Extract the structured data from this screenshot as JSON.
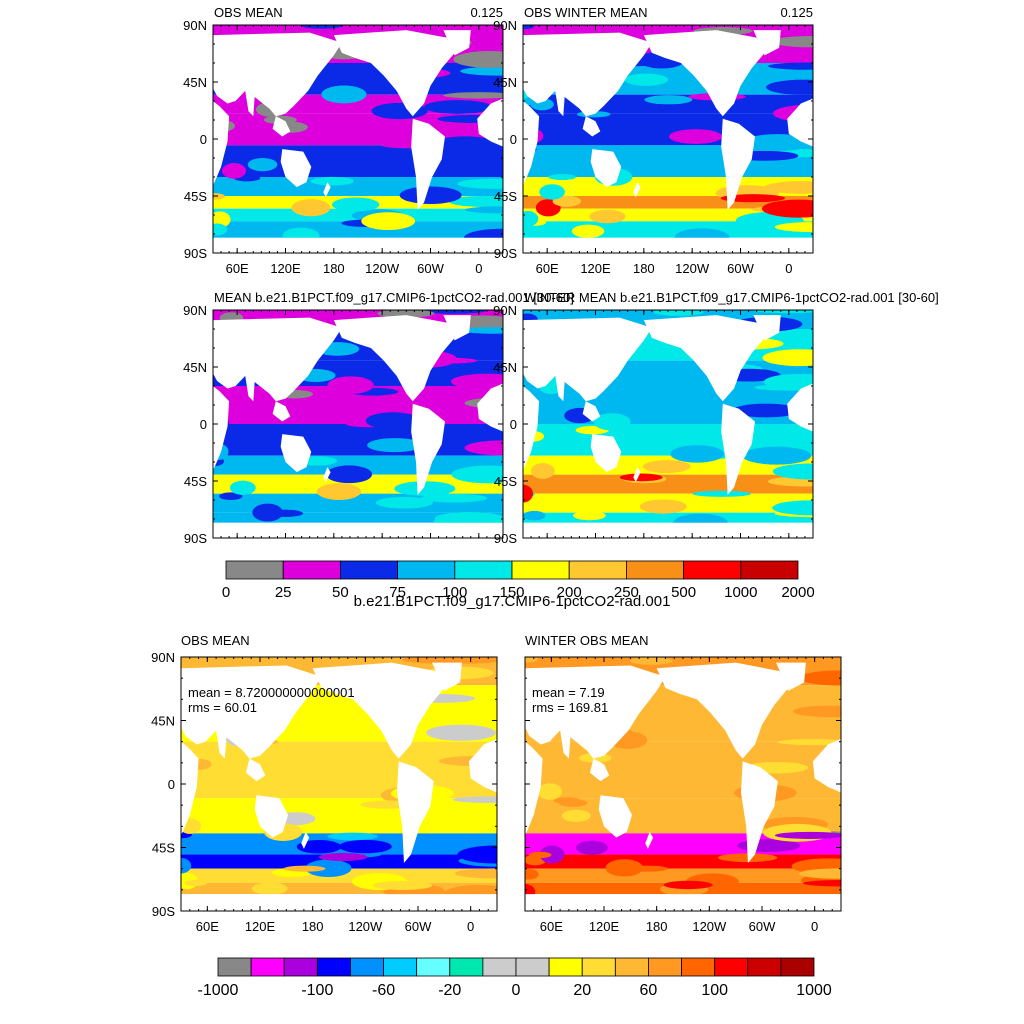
{
  "panels_top": [
    {
      "title_left": "OBS MEAN",
      "title_right": "0.125",
      "style": "obs"
    },
    {
      "title_left": "OBS WINTER MEAN",
      "title_right": "0.125",
      "style": "obswinter"
    },
    {
      "title_left": "MEAN b.e21.B1PCT.f09_g17.CMIP6-1pctCO2-rad.001 [30-60]",
      "title_right": "",
      "style": "model"
    },
    {
      "title_left": "WINTER MEAN b.e21.B1PCT.f09_g17.CMIP6-1pctCO2-rad.001 [30-60]",
      "title_right": "",
      "style": "modelwinter"
    }
  ],
  "lat_ticks": [
    "90N",
    "45N",
    "0",
    "45S",
    "90S"
  ],
  "lon_ticks": [
    "60E",
    "120E",
    "180",
    "120W",
    "60W",
    "0"
  ],
  "colorbar_top": {
    "labels": [
      "0",
      "25",
      "50",
      "75",
      "100",
      "150",
      "200",
      "250",
      "500",
      "1000",
      "2000"
    ],
    "colors": [
      "#888888",
      "#dd00dd",
      "#0a2ae8",
      "#00b8f0",
      "#00e8e8",
      "#ffff00",
      "#ffc830",
      "#f89018",
      "#ff0000",
      "#c80000"
    ]
  },
  "section_title": "b.e21.B1PCT.f09_g17.CMIP6-1pctCO2-rad.001",
  "panels_bottom": [
    {
      "title_left": "OBS MEAN",
      "mean": "mean = 8.720000000000001",
      "rms": "rms = 60.01",
      "style": "diff"
    },
    {
      "title_left": "WINTER OBS MEAN",
      "mean": "mean = 7.19",
      "rms": "rms = 169.81",
      "style": "diffwinter"
    }
  ],
  "colorbar_bottom": {
    "labels": [
      "-1000",
      "-100",
      "-60",
      "-20",
      "0",
      "20",
      "60",
      "100",
      "1000"
    ],
    "colors": [
      "#888888",
      "#ff00ff",
      "#aa00dd",
      "#0000ff",
      "#0090ff",
      "#00ccff",
      "#66ffff",
      "#00e8b0",
      "#cccccc",
      "#cccccc",
      "#ffff00",
      "#ffdd33",
      "#ffb833",
      "#ff9922",
      "#ff6600",
      "#ff0000",
      "#cc0000",
      "#aa0000"
    ]
  }
}
